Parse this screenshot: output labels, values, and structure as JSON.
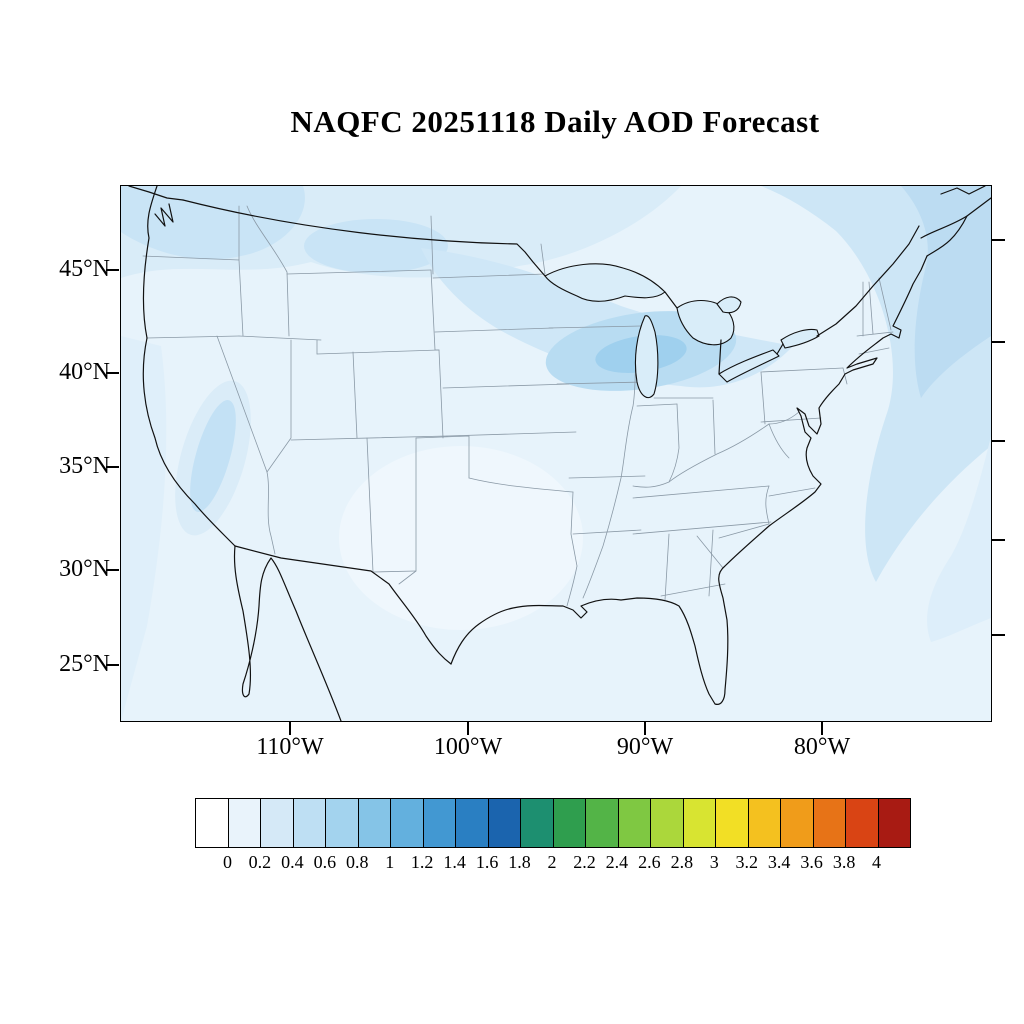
{
  "title": "NAQFC 20251118 Daily AOD Forecast",
  "chart_data": {
    "type": "heatmap",
    "title": "NAQFC 20251118 Daily AOD Forecast",
    "variable": "Daily Aerosol Optical Depth (AOD) forecast",
    "region": "Continental United States and adjacent ocean",
    "lat_axis": {
      "labels": [
        "45°N",
        "40°N",
        "35°N",
        "30°N",
        "25°N"
      ]
    },
    "lon_axis": {
      "labels": [
        "110°W",
        "100°W",
        "90°W",
        "80°W"
      ]
    },
    "colorbar": {
      "orientation": "horizontal",
      "tick_labels": [
        "0",
        "0.2",
        "0.4",
        "0.6",
        "0.8",
        "1",
        "1.2",
        "1.4",
        "1.6",
        "1.8",
        "2",
        "2.2",
        "2.4",
        "2.6",
        "2.8",
        "3",
        "3.2",
        "3.4",
        "3.6",
        "3.8",
        "4"
      ],
      "colors": [
        "#ffffff",
        "#e9f3fb",
        "#d5e9f7",
        "#bedff3",
        "#a3d3ee",
        "#85c4e7",
        "#63b0de",
        "#4298d2",
        "#2a7fc2",
        "#1b64ae",
        "#1d8f70",
        "#2f9e4e",
        "#53b447",
        "#7fc842",
        "#abd73b",
        "#d8e431",
        "#f2df25",
        "#f4c11f",
        "#f09c1a",
        "#e77317",
        "#d94414",
        "#a81b13"
      ]
    },
    "field_summary": [
      {
        "region": "Upper Midwest / Great Lakes band (WI-MI-Lake Michigan)",
        "aod": "0.4-0.6"
      },
      {
        "region": "Pacific Northwest and southern Canada border",
        "aod": "0.2-0.4"
      },
      {
        "region": "Northern Plains / Montana",
        "aod": "0.2-0.3"
      },
      {
        "region": "California Central Valley",
        "aod": "0.2-0.4"
      },
      {
        "region": "Northwest Atlantic offshore band (Northeast corner)",
        "aod": "0.2-0.4"
      },
      {
        "region": "Southern Plains / Texas interior",
        "aod": "0-0.1"
      },
      {
        "region": "Remainder of CONUS and Gulf of Mexico",
        "aod": "0.1-0.2"
      }
    ],
    "map_colors": {
      "background_tint": "#e7f3fb",
      "lake_fill": "#d9edf9",
      "coastline": "#111111",
      "state_border": "#8a99a6"
    }
  }
}
